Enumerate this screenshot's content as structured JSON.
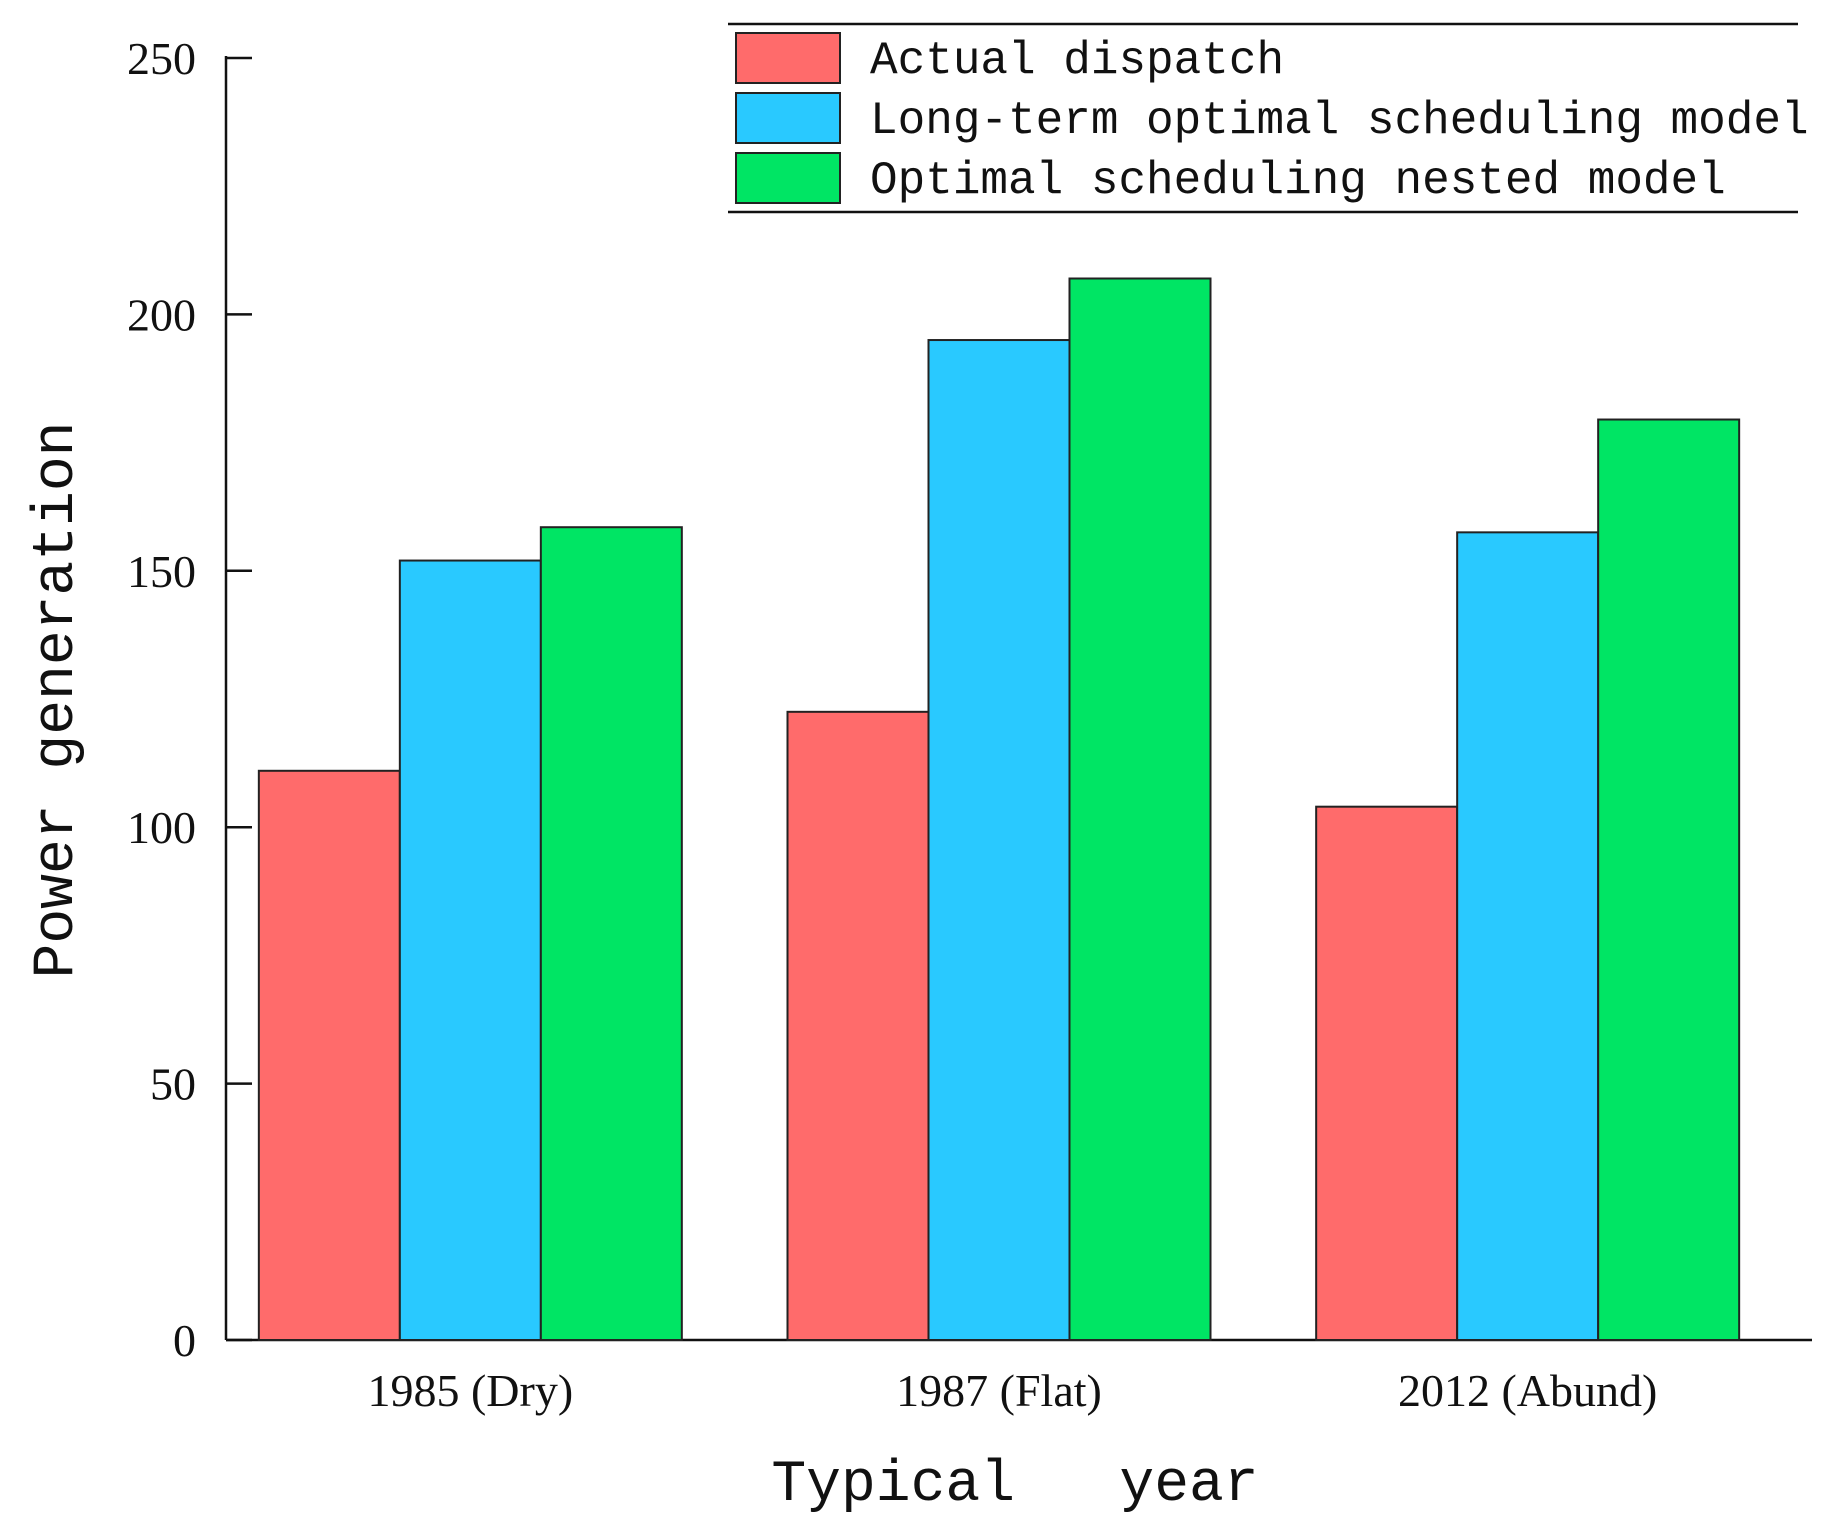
{
  "chart_data": {
    "type": "bar",
    "title": "",
    "xlabel": "Typical   year",
    "ylabel": "Power generation",
    "ylim": [
      0,
      250
    ],
    "yticks": [
      0,
      50,
      100,
      150,
      200,
      250
    ],
    "categories": [
      "1985 (Dry)",
      "1987 (Flat)",
      "2012 (Abund)"
    ],
    "series": [
      {
        "name": "Actual dispatch",
        "color": "#ff6b6b",
        "values": [
          111,
          122.5,
          104
        ]
      },
      {
        "name": "Long-term optimal scheduling model",
        "color": "#29c9ff",
        "values": [
          152,
          195,
          157.5
        ]
      },
      {
        "name": "Optimal scheduling nested model",
        "color": "#00e564",
        "values": [
          158.5,
          207,
          179.5
        ]
      }
    ],
    "legend": "top-right",
    "grid": false
  }
}
